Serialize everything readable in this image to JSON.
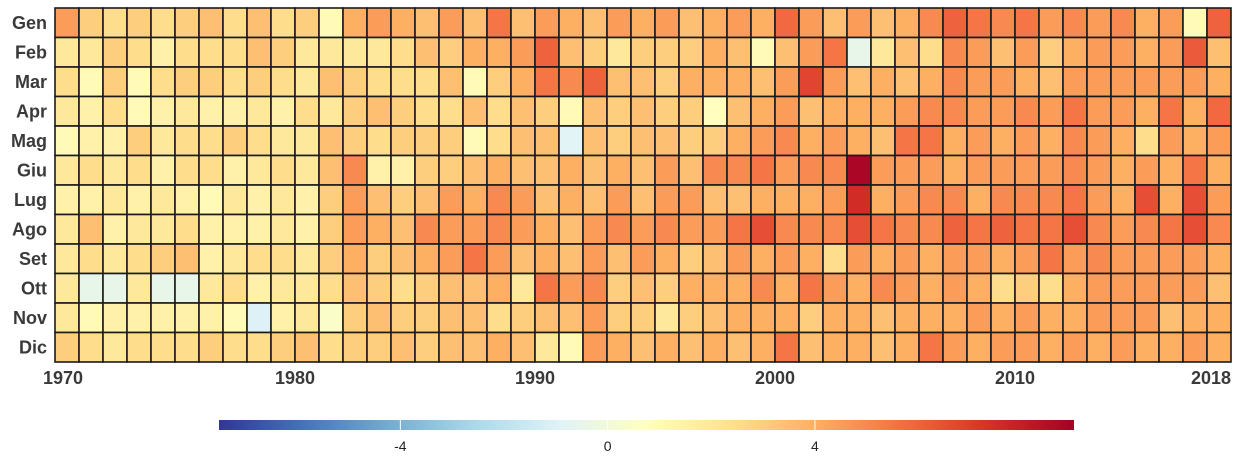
{
  "chart_data": {
    "type": "heatmap",
    "title": "",
    "xlabel": "",
    "ylabel": "",
    "years": [
      1970,
      1971,
      1972,
      1973,
      1974,
      1975,
      1976,
      1977,
      1978,
      1979,
      1980,
      1981,
      1982,
      1983,
      1984,
      1985,
      1986,
      1987,
      1988,
      1989,
      1990,
      1991,
      1992,
      1993,
      1994,
      1995,
      1996,
      1997,
      1998,
      1999,
      2000,
      2001,
      2002,
      2003,
      2004,
      2005,
      2006,
      2007,
      2008,
      2009,
      2010,
      2011,
      2012,
      2013,
      2014,
      2015,
      2016,
      2017,
      2018
    ],
    "x_tick_labels": [
      "1970",
      "1980",
      "1990",
      "2000",
      "2010",
      "2018"
    ],
    "x_tick_values": [
      1970,
      1980,
      1990,
      2000,
      2010,
      2018
    ],
    "months": [
      "Gen",
      "Feb",
      "Mar",
      "Apr",
      "Mag",
      "Giu",
      "Lug",
      "Ago",
      "Set",
      "Ott",
      "Nov",
      "Dic"
    ],
    "values": [
      [
        4.5,
        3.0,
        2.5,
        3.0,
        2.5,
        3.0,
        3.5,
        2.5,
        3.5,
        2.5,
        3.0,
        1.0,
        4.0,
        4.5,
        4.0,
        3.5,
        4.5,
        3.5,
        5.5,
        3.5,
        4.5,
        4.0,
        3.5,
        4.5,
        4.0,
        4.5,
        3.5,
        4.0,
        4.5,
        4.0,
        5.8,
        4.5,
        3.5,
        4.5,
        3.5,
        4.0,
        5.0,
        6.0,
        5.5,
        5.0,
        5.5,
        4.5,
        5.0,
        4.5,
        5.0,
        4.0,
        4.5,
        1.0,
        6.0
      ],
      [
        2.0,
        2.0,
        3.0,
        2.5,
        1.5,
        2.5,
        2.5,
        2.5,
        3.5,
        3.0,
        2.0,
        2.0,
        2.0,
        2.0,
        2.5,
        3.5,
        3.0,
        4.0,
        4.0,
        4.5,
        6.0,
        3.5,
        3.0,
        2.0,
        3.0,
        3.0,
        3.0,
        4.0,
        3.5,
        1.0,
        3.5,
        4.5,
        5.5,
        -0.5,
        2.0,
        3.5,
        2.5,
        5.0,
        4.5,
        3.5,
        4.5,
        3.0,
        4.0,
        4.5,
        4.5,
        4.0,
        4.5,
        6.2,
        3.5
      ],
      [
        2.5,
        1.0,
        3.0,
        1.0,
        2.5,
        3.0,
        3.0,
        2.5,
        3.0,
        2.5,
        2.0,
        3.5,
        3.0,
        2.5,
        2.5,
        2.5,
        3.5,
        1.0,
        3.0,
        4.0,
        5.5,
        5.0,
        6.0,
        3.5,
        3.5,
        3.0,
        4.0,
        4.0,
        4.0,
        3.5,
        4.5,
        6.8,
        4.5,
        3.5,
        4.0,
        3.5,
        4.0,
        5.0,
        4.5,
        4.5,
        4.0,
        3.5,
        4.5,
        4.5,
        4.5,
        4.5,
        4.5,
        4.5,
        4.0
      ],
      [
        2.0,
        1.5,
        2.5,
        1.0,
        1.5,
        2.0,
        1.5,
        1.5,
        2.0,
        1.5,
        2.5,
        2.0,
        3.0,
        3.5,
        3.0,
        2.5,
        2.5,
        3.5,
        2.5,
        3.5,
        3.0,
        1.0,
        3.5,
        3.0,
        3.5,
        3.0,
        3.0,
        0.8,
        3.5,
        4.0,
        4.5,
        3.5,
        4.0,
        4.0,
        4.0,
        4.5,
        5.0,
        5.0,
        4.5,
        4.5,
        5.0,
        4.5,
        5.5,
        4.5,
        4.5,
        4.0,
        5.5,
        4.0,
        5.8
      ],
      [
        1.0,
        1.5,
        1.5,
        3.0,
        2.0,
        2.5,
        2.5,
        3.0,
        2.5,
        2.0,
        2.0,
        3.5,
        3.0,
        2.5,
        3.0,
        3.0,
        3.0,
        1.0,
        2.5,
        3.5,
        3.5,
        -0.8,
        3.5,
        3.0,
        3.5,
        3.5,
        3.0,
        3.0,
        4.0,
        4.5,
        5.0,
        4.0,
        4.5,
        4.0,
        3.5,
        5.5,
        5.5,
        4.0,
        4.5,
        4.0,
        4.5,
        4.0,
        5.0,
        4.5,
        4.0,
        2.5,
        4.5,
        4.0,
        4.5
      ],
      [
        2.0,
        2.5,
        2.0,
        2.5,
        1.5,
        2.5,
        2.5,
        1.5,
        2.0,
        2.5,
        2.0,
        3.5,
        5.0,
        1.5,
        1.5,
        3.0,
        3.0,
        3.5,
        4.0,
        3.5,
        3.5,
        4.0,
        3.5,
        4.0,
        3.5,
        4.5,
        3.5,
        5.0,
        5.0,
        5.5,
        4.5,
        5.0,
        5.0,
        8.8,
        4.5,
        4.5,
        4.5,
        4.0,
        4.5,
        4.5,
        4.5,
        4.5,
        5.0,
        4.5,
        4.0,
        4.5,
        4.0,
        5.5,
        4.0
      ],
      [
        1.5,
        1.5,
        2.0,
        1.5,
        2.0,
        1.5,
        1.0,
        2.0,
        1.5,
        2.0,
        1.5,
        3.0,
        4.5,
        3.5,
        3.0,
        3.5,
        4.5,
        4.0,
        5.0,
        4.5,
        3.5,
        4.0,
        3.5,
        4.5,
        3.5,
        4.5,
        4.5,
        3.5,
        3.5,
        4.0,
        4.0,
        4.0,
        4.5,
        7.5,
        4.0,
        4.5,
        5.0,
        5.0,
        4.0,
        5.0,
        5.0,
        5.0,
        5.5,
        4.5,
        4.0,
        6.5,
        4.0,
        6.5,
        4.5
      ],
      [
        2.0,
        3.5,
        1.5,
        2.0,
        2.0,
        2.5,
        1.5,
        1.5,
        1.5,
        2.0,
        1.5,
        3.0,
        4.5,
        4.0,
        3.5,
        5.0,
        4.5,
        4.5,
        5.0,
        4.5,
        4.0,
        3.5,
        4.5,
        5.0,
        4.5,
        5.0,
        4.5,
        4.5,
        5.5,
        6.5,
        5.0,
        5.0,
        5.0,
        6.5,
        5.5,
        5.0,
        5.0,
        6.0,
        5.5,
        6.0,
        5.5,
        5.5,
        6.5,
        5.0,
        4.5,
        5.0,
        5.5,
        6.5,
        5.0
      ],
      [
        2.0,
        2.5,
        2.0,
        2.5,
        3.0,
        3.5,
        1.5,
        2.0,
        2.5,
        2.5,
        2.0,
        3.0,
        4.0,
        3.0,
        3.5,
        4.0,
        4.5,
        5.5,
        4.5,
        3.5,
        4.0,
        3.5,
        4.5,
        3.5,
        4.5,
        4.0,
        3.0,
        3.5,
        4.5,
        4.0,
        4.5,
        4.0,
        2.5,
        4.5,
        4.0,
        4.5,
        4.0,
        4.5,
        4.5,
        4.0,
        4.5,
        5.5,
        4.5,
        5.0,
        4.5,
        4.5,
        4.5,
        4.5,
        4.0
      ],
      [
        2.0,
        -0.5,
        -0.5,
        2.0,
        -0.5,
        -0.5,
        2.0,
        2.5,
        1.5,
        2.0,
        2.0,
        2.5,
        3.5,
        3.0,
        2.5,
        3.0,
        3.5,
        3.5,
        4.0,
        2.0,
        5.5,
        4.5,
        5.0,
        3.0,
        3.5,
        3.0,
        4.0,
        4.0,
        4.0,
        5.0,
        4.0,
        5.5,
        4.5,
        4.0,
        5.0,
        4.5,
        4.0,
        4.5,
        4.0,
        2.5,
        3.0,
        2.5,
        4.0,
        4.5,
        4.5,
        4.5,
        4.5,
        4.5,
        3.5
      ],
      [
        2.0,
        1.0,
        1.5,
        1.5,
        1.5,
        1.5,
        1.5,
        1.0,
        -1.0,
        1.5,
        2.0,
        0.5,
        3.0,
        3.5,
        3.0,
        3.0,
        3.5,
        3.5,
        2.5,
        3.0,
        3.5,
        3.5,
        4.5,
        3.0,
        3.0,
        2.0,
        3.0,
        3.5,
        4.0,
        4.0,
        4.0,
        3.0,
        4.0,
        4.0,
        3.5,
        4.0,
        4.0,
        4.0,
        4.5,
        4.0,
        4.5,
        4.0,
        4.0,
        4.5,
        4.5,
        4.5,
        3.5,
        4.0,
        4.0
      ],
      [
        3.0,
        2.5,
        2.0,
        2.5,
        2.5,
        2.5,
        3.0,
        2.5,
        2.5,
        3.0,
        3.5,
        2.5,
        3.0,
        3.0,
        3.5,
        3.0,
        3.5,
        3.5,
        4.0,
        3.5,
        2.0,
        1.0,
        4.5,
        4.0,
        3.5,
        4.0,
        3.5,
        4.0,
        3.5,
        4.0,
        5.5,
        3.5,
        4.0,
        4.0,
        3.5,
        4.0,
        5.5,
        4.5,
        4.0,
        4.5,
        4.5,
        4.0,
        4.5,
        4.0,
        4.5,
        4.0,
        4.0,
        4.5,
        4.0
      ]
    ],
    "colorbar": {
      "min": -7.5,
      "max": 9,
      "tick_labels": [
        "-4",
        "0",
        "4"
      ],
      "tick_values": [
        -4,
        0,
        4
      ],
      "colormap": "RdYlBu_r",
      "colors": [
        "#313695",
        "#4575b4",
        "#74add1",
        "#abd9e9",
        "#e0f3f8",
        "#ffffbf",
        "#fee090",
        "#fdae61",
        "#f46d43",
        "#d73027",
        "#a50026"
      ]
    },
    "grid": true,
    "legend": "bottom"
  }
}
